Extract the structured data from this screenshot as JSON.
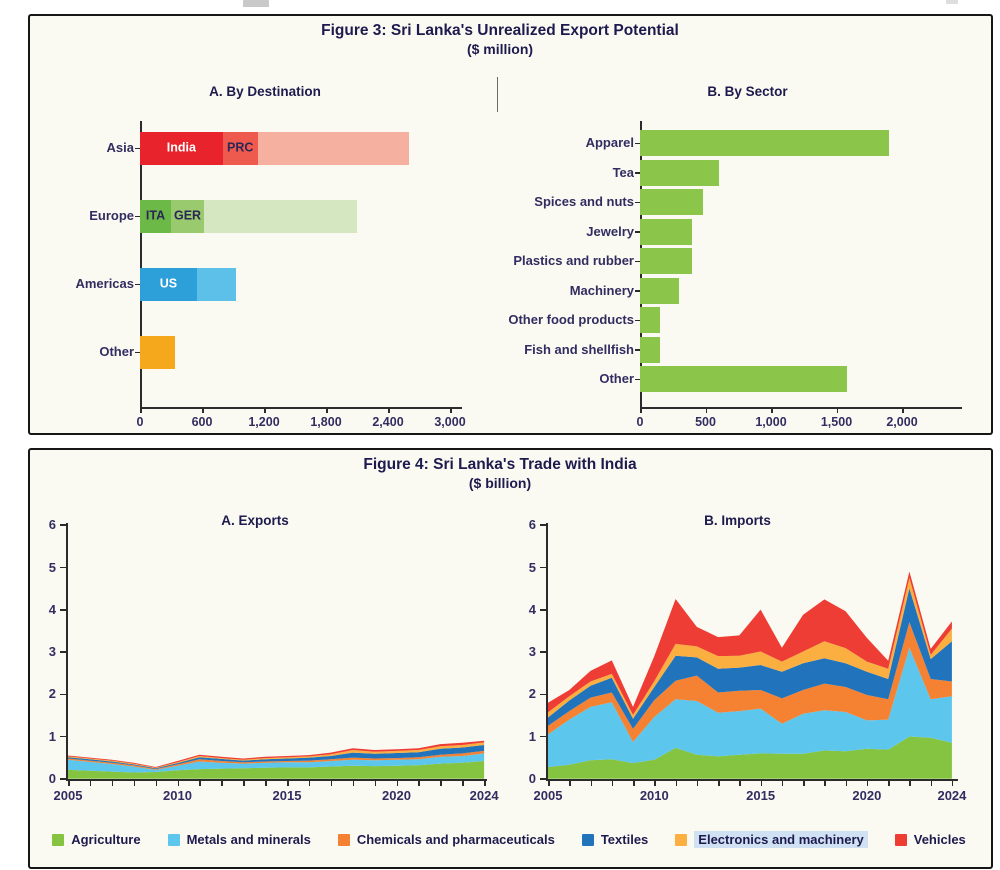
{
  "figures": {
    "fig3": {
      "title": "Figure 3: Sri Lanka's Unrealized Export Potential",
      "subtitle": "($ million)"
    },
    "fig4": {
      "title": "Figure 4: Sri Lanka's Trade with India",
      "subtitle": "($ billion)"
    }
  },
  "chart_data": [
    {
      "id": "fig3a",
      "type": "bar",
      "title": "A. By Destination",
      "orientation": "horizontal",
      "xlabel": "",
      "ylabel": "",
      "xlim": [
        0,
        3100
      ],
      "x_ticks": [
        {
          "value": 0,
          "label": "0"
        },
        {
          "value": 600,
          "label": "600"
        },
        {
          "value": 1200,
          "label": "1,200"
        },
        {
          "value": 1800,
          "label": "1,800"
        },
        {
          "value": 2400,
          "label": "2,400"
        },
        {
          "value": 3000,
          "label": "3,000"
        }
      ],
      "bars": [
        {
          "category": "Asia",
          "total": 2600,
          "segments": [
            {
              "name": "India",
              "value": 800,
              "color": "#e8232b",
              "text": "India",
              "text_color": "#ffffff"
            },
            {
              "name": "PRC",
              "value": 340,
              "color": "#ef5a4f",
              "text": "PRC",
              "text_color": "#2b2655"
            },
            {
              "name": "rest-of-asia",
              "value": 1460,
              "color": "#f5b0a0",
              "text": "",
              "text_color": ""
            }
          ]
        },
        {
          "category": "Europe",
          "total": 2100,
          "segments": [
            {
              "name": "ITA",
              "value": 300,
              "color": "#6cb947",
              "text": "ITA",
              "text_color": "#2b2655"
            },
            {
              "name": "GER",
              "value": 320,
              "color": "#99ca6d",
              "text": "GER",
              "text_color": "#2b2655"
            },
            {
              "name": "rest-of-europe",
              "value": 1480,
              "color": "#d5e7c0",
              "text": "",
              "text_color": ""
            }
          ]
        },
        {
          "category": "Americas",
          "total": 930,
          "segments": [
            {
              "name": "US",
              "value": 550,
              "color": "#2da0da",
              "text": "US",
              "text_color": "#ffffff"
            },
            {
              "name": "rest-of-americas",
              "value": 380,
              "color": "#5cc0e9",
              "text": "",
              "text_color": ""
            }
          ]
        },
        {
          "category": "Other",
          "total": 340,
          "segments": [
            {
              "name": "other",
              "value": 340,
              "color": "#f6a81c",
              "text": "",
              "text_color": ""
            }
          ]
        }
      ]
    },
    {
      "id": "fig3b",
      "type": "bar",
      "title": "B. By Sector",
      "orientation": "horizontal",
      "xlabel": "",
      "ylabel": "",
      "xlim": [
        0,
        2450
      ],
      "bar_color": "#8bc54a",
      "x_ticks": [
        {
          "value": 0,
          "label": "0"
        },
        {
          "value": 500,
          "label": "500"
        },
        {
          "value": 1000,
          "label": "1,000"
        },
        {
          "value": 1500,
          "label": "1,500"
        },
        {
          "value": 2000,
          "label": "2,000"
        }
      ],
      "categories": [
        "Apparel",
        "Tea",
        "Spices and nuts",
        "Jewelry",
        "Plastics and rubber",
        "Machinery",
        "Other food products",
        "Fish and shellfish",
        "Other"
      ],
      "values": [
        1900,
        600,
        480,
        400,
        400,
        300,
        150,
        150,
        1580
      ]
    },
    {
      "id": "fig4a",
      "type": "area",
      "title": "A. Exports",
      "xlabel": "",
      "ylabel": "",
      "ylim": [
        0,
        6
      ],
      "y_ticks": [
        0,
        1,
        2,
        3,
        4,
        5,
        6
      ],
      "x": [
        2005,
        2006,
        2007,
        2008,
        2009,
        2010,
        2011,
        2012,
        2013,
        2014,
        2015,
        2016,
        2017,
        2018,
        2019,
        2020,
        2021,
        2022,
        2023,
        2024
      ],
      "x_labels": [
        {
          "index": 0,
          "label": "2005"
        },
        {
          "index": 5,
          "label": "2010"
        },
        {
          "index": 10,
          "label": "2015"
        },
        {
          "index": 15,
          "label": "2020"
        },
        {
          "index": 19,
          "label": "2024"
        }
      ],
      "series": [
        {
          "name": "Agriculture",
          "color": "#85c441",
          "values": [
            0.21,
            0.19,
            0.17,
            0.15,
            0.16,
            0.2,
            0.23,
            0.24,
            0.25,
            0.26,
            0.27,
            0.27,
            0.29,
            0.31,
            0.3,
            0.31,
            0.32,
            0.36,
            0.38,
            0.42
          ]
        },
        {
          "name": "Metals and minerals",
          "color": "#5cc6ec",
          "values": [
            0.24,
            0.21,
            0.18,
            0.14,
            0.05,
            0.11,
            0.18,
            0.14,
            0.11,
            0.12,
            0.12,
            0.12,
            0.13,
            0.14,
            0.14,
            0.14,
            0.14,
            0.16,
            0.16,
            0.18
          ]
        },
        {
          "name": "Chemicals and pharmaceuticals",
          "color": "#f58233",
          "values": [
            0.03,
            0.03,
            0.03,
            0.03,
            0.02,
            0.03,
            0.05,
            0.04,
            0.03,
            0.03,
            0.03,
            0.04,
            0.04,
            0.05,
            0.04,
            0.04,
            0.05,
            0.05,
            0.06,
            0.06
          ]
        },
        {
          "name": "Textiles",
          "color": "#2174bc",
          "values": [
            0.03,
            0.03,
            0.03,
            0.02,
            0.02,
            0.03,
            0.05,
            0.05,
            0.04,
            0.05,
            0.06,
            0.07,
            0.08,
            0.12,
            0.11,
            0.12,
            0.12,
            0.14,
            0.14,
            0.14
          ]
        },
        {
          "name": "Electronics and machinery",
          "color": "#fbaf40",
          "values": [
            0.02,
            0.02,
            0.02,
            0.02,
            0.01,
            0.02,
            0.03,
            0.02,
            0.02,
            0.03,
            0.03,
            0.03,
            0.04,
            0.06,
            0.05,
            0.05,
            0.05,
            0.06,
            0.06,
            0.06
          ]
        },
        {
          "name": "Vehicles",
          "color": "#ee3d35",
          "values": [
            0.02,
            0.02,
            0.02,
            0.02,
            0.02,
            0.03,
            0.03,
            0.03,
            0.03,
            0.03,
            0.03,
            0.03,
            0.04,
            0.04,
            0.04,
            0.04,
            0.04,
            0.05,
            0.05,
            0.04
          ]
        }
      ]
    },
    {
      "id": "fig4b",
      "type": "area",
      "title": "B. Imports",
      "xlabel": "",
      "ylabel": "",
      "ylim": [
        0,
        6
      ],
      "y_ticks": [
        0,
        1,
        2,
        3,
        4,
        5,
        6
      ],
      "x": [
        2005,
        2006,
        2007,
        2008,
        2009,
        2010,
        2011,
        2012,
        2013,
        2014,
        2015,
        2016,
        2017,
        2018,
        2019,
        2020,
        2021,
        2022,
        2023,
        2024
      ],
      "x_labels": [
        {
          "index": 0,
          "label": "2005"
        },
        {
          "index": 5,
          "label": "2010"
        },
        {
          "index": 10,
          "label": "2015"
        },
        {
          "index": 15,
          "label": "2020"
        },
        {
          "index": 19,
          "label": "2024"
        }
      ],
      "series": [
        {
          "name": "Agriculture",
          "color": "#85c441",
          "values": [
            0.28,
            0.33,
            0.44,
            0.46,
            0.37,
            0.45,
            0.73,
            0.57,
            0.53,
            0.57,
            0.6,
            0.59,
            0.59,
            0.67,
            0.65,
            0.71,
            0.69,
            1.0,
            0.97,
            0.85
          ]
        },
        {
          "name": "Metals and minerals",
          "color": "#5cc6ec",
          "values": [
            0.77,
            1.07,
            1.26,
            1.35,
            0.5,
            1.01,
            1.15,
            1.27,
            1.03,
            1.03,
            1.06,
            0.71,
            0.95,
            0.95,
            0.93,
            0.67,
            0.71,
            2.1,
            0.91,
            1.1
          ]
        },
        {
          "name": "Chemicals and pharmaceuticals",
          "color": "#f58233",
          "values": [
            0.2,
            0.2,
            0.22,
            0.23,
            0.31,
            0.4,
            0.44,
            0.6,
            0.48,
            0.48,
            0.44,
            0.6,
            0.56,
            0.63,
            0.59,
            0.6,
            0.48,
            0.6,
            0.48,
            0.35
          ]
        },
        {
          "name": "Textiles",
          "color": "#2174bc",
          "values": [
            0.2,
            0.25,
            0.28,
            0.35,
            0.24,
            0.31,
            0.59,
            0.43,
            0.56,
            0.55,
            0.59,
            0.63,
            0.63,
            0.6,
            0.56,
            0.55,
            0.48,
            0.8,
            0.47,
            0.95
          ]
        },
        {
          "name": "Electronics and machinery",
          "color": "#fbaf40",
          "values": [
            0.12,
            0.1,
            0.1,
            0.09,
            0.09,
            0.14,
            0.28,
            0.26,
            0.3,
            0.28,
            0.32,
            0.24,
            0.28,
            0.4,
            0.36,
            0.24,
            0.24,
            0.25,
            0.1,
            0.3
          ]
        },
        {
          "name": "Vehicles",
          "color": "#ee3d35",
          "values": [
            0.23,
            0.15,
            0.25,
            0.32,
            0.19,
            0.59,
            1.06,
            0.46,
            0.45,
            0.48,
            0.99,
            0.33,
            0.87,
            0.99,
            0.87,
            0.56,
            0.19,
            0.15,
            0.14,
            0.17
          ]
        }
      ]
    }
  ],
  "legend": {
    "position": "bottom",
    "items": [
      {
        "label": "Agriculture",
        "color": "#85c441",
        "highlight": false
      },
      {
        "label": "Metals and minerals",
        "color": "#5cc6ec",
        "highlight": false
      },
      {
        "label": "Chemicals and pharmaceuticals",
        "color": "#f58233",
        "highlight": false
      },
      {
        "label": "Textiles",
        "color": "#2174bc",
        "highlight": false
      },
      {
        "label": "Electronics and machinery",
        "color": "#fbaf40",
        "highlight": true
      },
      {
        "label": "Vehicles",
        "color": "#ee3d35",
        "highlight": false
      }
    ]
  }
}
